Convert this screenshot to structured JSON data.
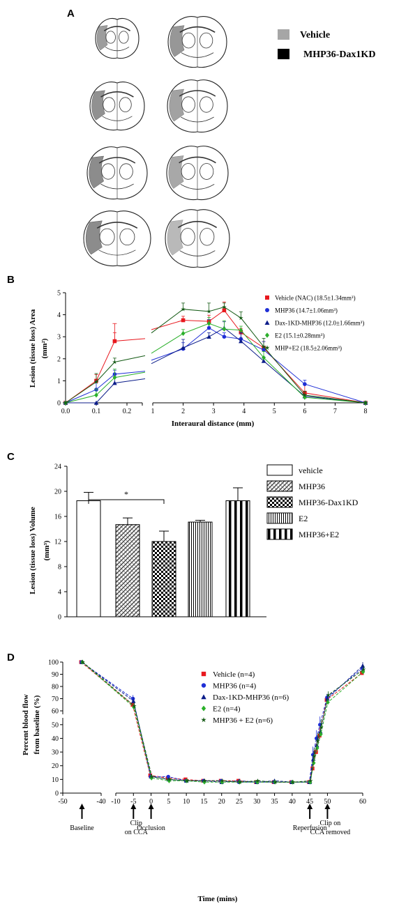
{
  "panel_a": {
    "label": "A",
    "legend": [
      {
        "name": "Vehicle",
        "color": "#a6a6a6"
      },
      {
        "name": "MHP36-Dax1KD",
        "color": "#000000"
      }
    ]
  },
  "chart_data": [
    {
      "panel": "B",
      "type": "line",
      "ylabel": "Lesion  (tissue loss) Area",
      "yunit": "(mm²)",
      "xlabel": "Interaural distance (mm)",
      "ylim": [
        0,
        5
      ],
      "yticks": [
        "0",
        "1",
        "2",
        "3",
        "4",
        "5"
      ],
      "xticks_left": [
        "0.0",
        "0.1",
        "0.2"
      ],
      "xticks_right": [
        "1",
        "2",
        "3",
        "4",
        "5",
        "6",
        "7",
        "8"
      ],
      "x": [
        0.0,
        0.1,
        0.16,
        2,
        2.85,
        3.35,
        3.9,
        4.65,
        6,
        8
      ],
      "series": [
        {
          "name": "Vehicle (NAC) (18.5±1.34mm³)",
          "color": "#e8181e",
          "marker": "square",
          "values": [
            0,
            1.0,
            2.8,
            3.75,
            3.7,
            4.2,
            3.2,
            2.5,
            0.45,
            0
          ]
        },
        {
          "name": "MHP36 (14.7±1.06mm³)",
          "color": "#1f2fd6",
          "marker": "circle",
          "values": [
            0,
            0.6,
            1.3,
            2.45,
            3.4,
            3.0,
            2.9,
            2.4,
            0.85,
            0
          ]
        },
        {
          "name": "Dax-1KD-MHP36 (12.0±1.66mm³)",
          "color": "#0c1d8a",
          "marker": "triangle",
          "values": [
            0,
            0,
            0.9,
            2.5,
            3.0,
            3.4,
            2.8,
            1.9,
            0.3,
            0
          ]
        },
        {
          "name": "E2 (15.1±0.28mm³)",
          "color": "#2bb02b",
          "marker": "diamond",
          "values": [
            0,
            0.35,
            1.15,
            3.15,
            3.6,
            3.35,
            3.3,
            2.05,
            0.25,
            0
          ]
        },
        {
          "name": "MHP+E2 (18.5±2.06mm³)",
          "color": "#145a14",
          "marker": "star",
          "values": [
            0,
            0.95,
            1.85,
            4.25,
            4.15,
            4.35,
            3.85,
            2.55,
            0.35,
            0
          ]
        }
      ]
    },
    {
      "panel": "C",
      "type": "bar",
      "ylabel": "Lesion (tissue loss) Volume",
      "yunit": "(mm³)",
      "ylim": [
        0,
        24
      ],
      "yticks": [
        "0",
        "4",
        "8",
        "12",
        "16",
        "20",
        "24"
      ],
      "categories": [
        "vehicle",
        "MHP36",
        "MHP36-Dax1KD",
        "E2",
        "MHP36+E2"
      ],
      "values": [
        18.5,
        14.7,
        12.0,
        15.1,
        18.5
      ],
      "errors": [
        1.34,
        1.06,
        1.66,
        0.28,
        2.06
      ],
      "significance": {
        "label": "*",
        "between": [
          0,
          2
        ]
      }
    },
    {
      "panel": "D",
      "type": "line",
      "ylabel": "Percent blood flow",
      "ylabel2": "from baseline (%)",
      "xlabel": "Time (mins)",
      "yticks_lower": [
        "0",
        "10",
        "20",
        "30",
        "40",
        "50"
      ],
      "yticks_upper": [
        "60",
        "70",
        "80",
        "90",
        "100"
      ],
      "xticks_left": [
        "-50",
        "-40"
      ],
      "xticks_right": [
        "-10",
        "-5",
        "0",
        "5",
        "10",
        "15",
        "20",
        "25",
        "30",
        "35",
        "40",
        "45",
        "50",
        "60"
      ],
      "annotations": [
        {
          "lines": [
            "Baseline"
          ],
          "x": -45
        },
        {
          "lines": [
            "Clip",
            "on  CCA"
          ],
          "x": -5
        },
        {
          "lines": [
            "Occlusion"
          ],
          "x": 0
        },
        {
          "lines": [
            "Reperfusion"
          ],
          "x": 45
        },
        {
          "lines": [
            "Clip on",
            "CCA removed"
          ],
          "x": 50
        }
      ],
      "x": [
        -45,
        -5,
        0,
        5,
        10,
        15,
        20,
        25,
        30,
        35,
        40,
        45,
        46,
        47,
        48,
        50,
        60
      ],
      "series": [
        {
          "name": "Vehicle (n=4)",
          "color": "#e8181e",
          "marker": "square",
          "values": [
            100,
            65,
            13,
            11,
            10,
            9,
            9,
            9,
            8,
            8,
            8,
            8,
            18,
            30,
            42,
            69,
            91
          ]
        },
        {
          "name": "MHP36 (n=4)",
          "color": "#1f2fd6",
          "marker": "circle",
          "values": [
            100,
            70,
            12,
            12,
            9,
            9,
            9,
            8,
            8,
            8,
            8,
            8,
            28,
            40,
            50,
            71,
            95
          ]
        },
        {
          "name": "Dax-1KD-MHP36 (n=6)",
          "color": "#0c1d8a",
          "marker": "triangle",
          "values": [
            100,
            68,
            12,
            10,
            9,
            9,
            8,
            9,
            8,
            9,
            8,
            8,
            25,
            35,
            45,
            70,
            97
          ]
        },
        {
          "name": "E2 (n=4)",
          "color": "#2bb02b",
          "marker": "diamond",
          "values": [
            100,
            63,
            11,
            9,
            9,
            8,
            8,
            8,
            8,
            8,
            8,
            8,
            22,
            33,
            43,
            67,
            92
          ]
        },
        {
          "name": "MHP36 + E2 (n=6)",
          "color": "#145a14",
          "marker": "star",
          "values": [
            100,
            64,
            12,
            10,
            9,
            9,
            9,
            8,
            9,
            8,
            8,
            9,
            27,
            38,
            48,
            73,
            94
          ]
        }
      ]
    }
  ]
}
